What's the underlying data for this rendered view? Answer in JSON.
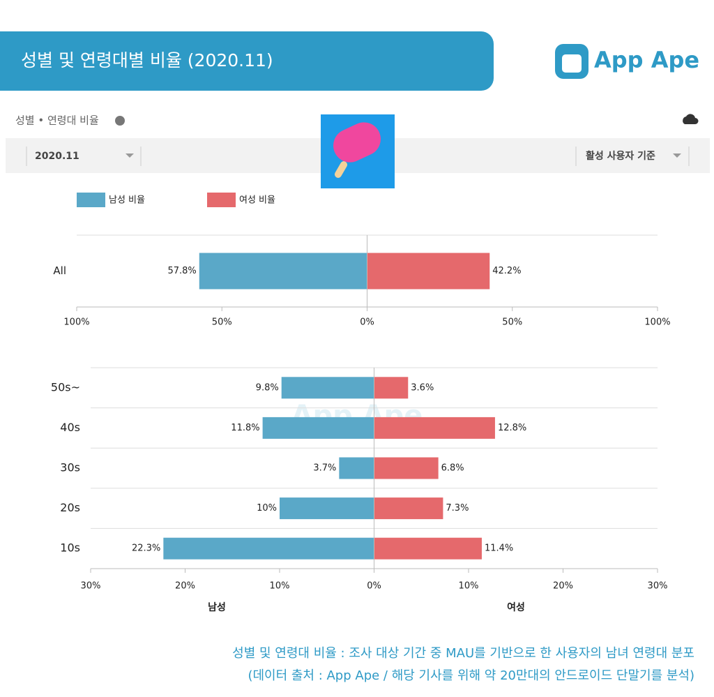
{
  "header": {
    "title": "성별 및 연령대별 비율 (2020.11)",
    "logo": "App Ape"
  },
  "panel": {
    "title": "성별 • 연령대 비율",
    "period": "2020.11",
    "basis": "활성 사용자 기준"
  },
  "watermark": "App Ape",
  "chart_data": [
    {
      "type": "bar",
      "orientation": "horizontal",
      "categories": [
        "All"
      ],
      "series": [
        {
          "name": "남성 비율",
          "color": "#5aa8c8",
          "values": [
            57.8
          ],
          "value_labels": [
            "57.8%"
          ]
        },
        {
          "name": "여성 비율",
          "color": "#e5696c",
          "values": [
            42.2
          ],
          "value_labels": [
            "42.2%"
          ]
        }
      ],
      "xlim": [
        -100,
        100
      ],
      "xticks": [
        {
          "value": -100,
          "label": "100%"
        },
        {
          "value": -50,
          "label": "50%"
        },
        {
          "value": 0,
          "label": "0%"
        },
        {
          "value": 50,
          "label": "50%"
        },
        {
          "value": 100,
          "label": "100%"
        }
      ]
    },
    {
      "type": "bar",
      "orientation": "horizontal",
      "categories": [
        "50s~",
        "40s",
        "30s",
        "20s",
        "10s"
      ],
      "series": [
        {
          "color": "#5aa8c8",
          "values": [
            9.8,
            11.8,
            3.7,
            10,
            22.3
          ],
          "value_labels": [
            "9.8%",
            "11.8%",
            "3.7%",
            "10%",
            "22.3%"
          ]
        },
        {
          "color": "#e5696c",
          "values": [
            3.6,
            12.8,
            6.8,
            7.3,
            11.4
          ],
          "value_labels": [
            "3.6%",
            "12.8%",
            "6.8%",
            "7.3%",
            "11.4%"
          ]
        }
      ],
      "xlim": [
        -30,
        30
      ],
      "xticks": [
        {
          "value": -30,
          "label": "30%"
        },
        {
          "value": -20,
          "label": "20%"
        },
        {
          "value": -10,
          "label": "10%"
        },
        {
          "value": 0,
          "label": "0%"
        },
        {
          "value": 10,
          "label": "10%"
        },
        {
          "value": 20,
          "label": "20%"
        },
        {
          "value": 30,
          "label": "30%"
        }
      ],
      "xlabels": [
        "남성",
        "여성"
      ]
    }
  ],
  "footer": {
    "lines": [
      "성별 및 연령대 비율 : 조사 대상 기간 중 MAU를 기반으로 한 사용자의 남녀 연령대 분포",
      "(데이터 출처 : App Ape / 해당 기사를 위해 약 20만대의 안드로이드 단말기를 분석)"
    ]
  }
}
